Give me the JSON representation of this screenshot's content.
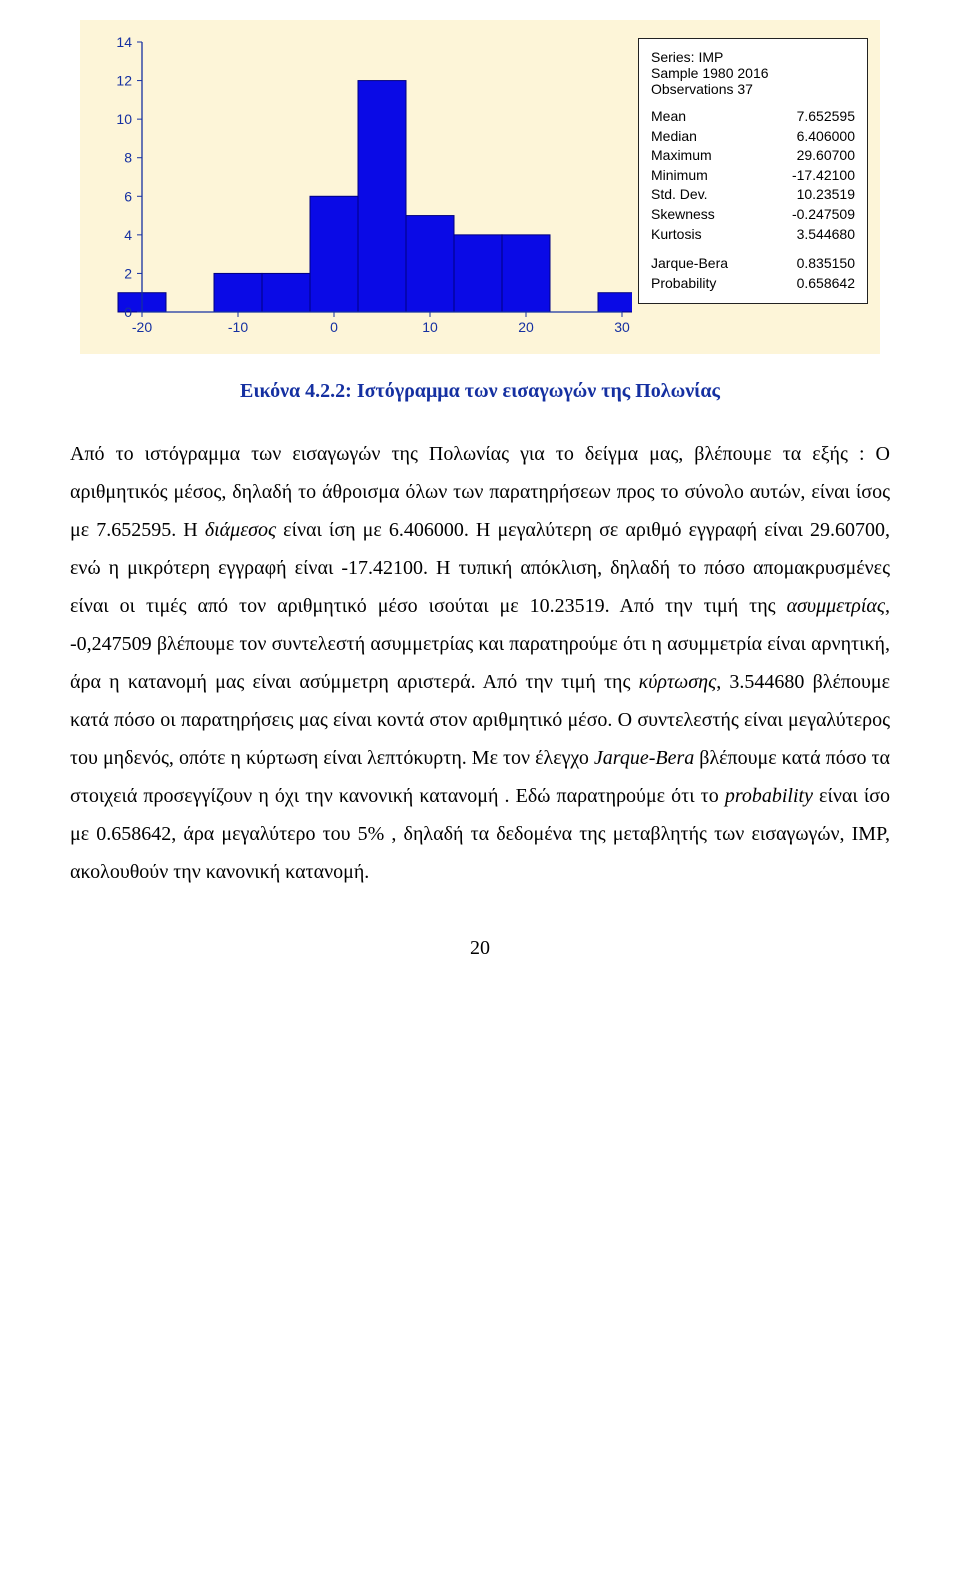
{
  "chart": {
    "type": "histogram",
    "background_color": "#fdf5d8",
    "bar_color": "#0a0ae6",
    "bar_border": "#000080",
    "axis_color": "#1530a1",
    "xlim": [
      -20,
      30
    ],
    "ylim": [
      0,
      14
    ],
    "xticks": [
      -20,
      -10,
      0,
      10,
      20,
      30
    ],
    "yticks": [
      0,
      2,
      4,
      6,
      8,
      10,
      12,
      14
    ],
    "bins": [
      {
        "x": -20,
        "h": 1
      },
      {
        "x": -15,
        "h": 0
      },
      {
        "x": -10,
        "h": 2
      },
      {
        "x": -5,
        "h": 2
      },
      {
        "x": 0,
        "h": 6
      },
      {
        "x": 5,
        "h": 12
      },
      {
        "x": 10,
        "h": 5
      },
      {
        "x": 15,
        "h": 4
      },
      {
        "x": 20,
        "h": 4
      },
      {
        "x": 25,
        "h": 0
      },
      {
        "x": 30,
        "h": 1
      }
    ],
    "bin_width": 5,
    "axis_fontsize": 14
  },
  "stats": {
    "series_label": "Series: IMP",
    "sample_label": "Sample 1980 2016",
    "obs_label": "Observations 37",
    "rows": [
      {
        "label": "Mean",
        "value": "7.652595"
      },
      {
        "label": "Median",
        "value": "6.406000"
      },
      {
        "label": "Maximum",
        "value": "29.60700"
      },
      {
        "label": "Minimum",
        "value": "-17.42100"
      },
      {
        "label": "Std. Dev.",
        "value": "10.23519"
      },
      {
        "label": "Skewness",
        "value": "-0.247509"
      },
      {
        "label": "Kurtosis",
        "value": "3.544680"
      }
    ],
    "test_rows": [
      {
        "label": "Jarque-Bera",
        "value": "0.835150"
      },
      {
        "label": "Probability",
        "value": "0.658642"
      }
    ]
  },
  "caption": "Εικόνα 4.2.2: Ιστόγραμμα των εισαγωγών της Πολωνίας",
  "body": {
    "p1_a": "Από το ιστόγραμμα  των εισαγωγών της Πολωνίας για το δείγμα μας, βλέπουμε τα εξής : Ο αριθμητικός μέσος, δηλαδή το άθροισμα όλων των παρατηρήσεων προς το σύνολο αυτών, είναι ίσος με 7.652595. Η ",
    "p1_b": "διάμεσος",
    "p1_c": " είναι ίση με 6.406000. Η μεγαλύτερη σε αριθμό εγγραφή είναι 29.60700, ενώ η μικρότερη εγγραφή είναι -17.42100. Η τυπική απόκλιση, δηλαδή το πόσο απομακρυσμένες είναι οι τιμές από τον αριθμητικό μέσο ισούται με 10.23519. Από την τιμή της ",
    "p1_d": "ασυμμετρίας",
    "p1_e": ", -0,247509 βλέπουμε τον συντελεστή ασυμμετρίας και παρατηρούμε ότι η ασυμμετρία είναι αρνητική, άρα η κατανομή μας είναι ασύμμετρη αριστερά. Από την τιμή της ",
    "p1_f": "κύρτωσης",
    "p1_g": ", 3.544680 βλέπουμε κατά πόσο οι παρατηρήσεις μας είναι κοντά στον αριθμητικό μέσο. Ο συντελεστής είναι μεγαλύτερος του μηδενός, οπότε η κύρτωση είναι λεπτόκυρτη. Με τον έλεγχο ",
    "p1_h": "Jarque-Bera",
    "p1_i": " βλέπουμε  κατά πόσο τα στοιχειά προσεγγίζουν η όχι την κανονική κατανομή . Εδώ παρατηρούμε ότι το ",
    "p1_j": "probability",
    "p1_k": " είναι ίσο με 0.658642, άρα μεγαλύτερο του 5% , δηλαδή τα δεδομένα της μεταβλητής των εισαγωγών, IMP,  ακολουθούν την κανονική κατανομή."
  },
  "page_number": "20"
}
